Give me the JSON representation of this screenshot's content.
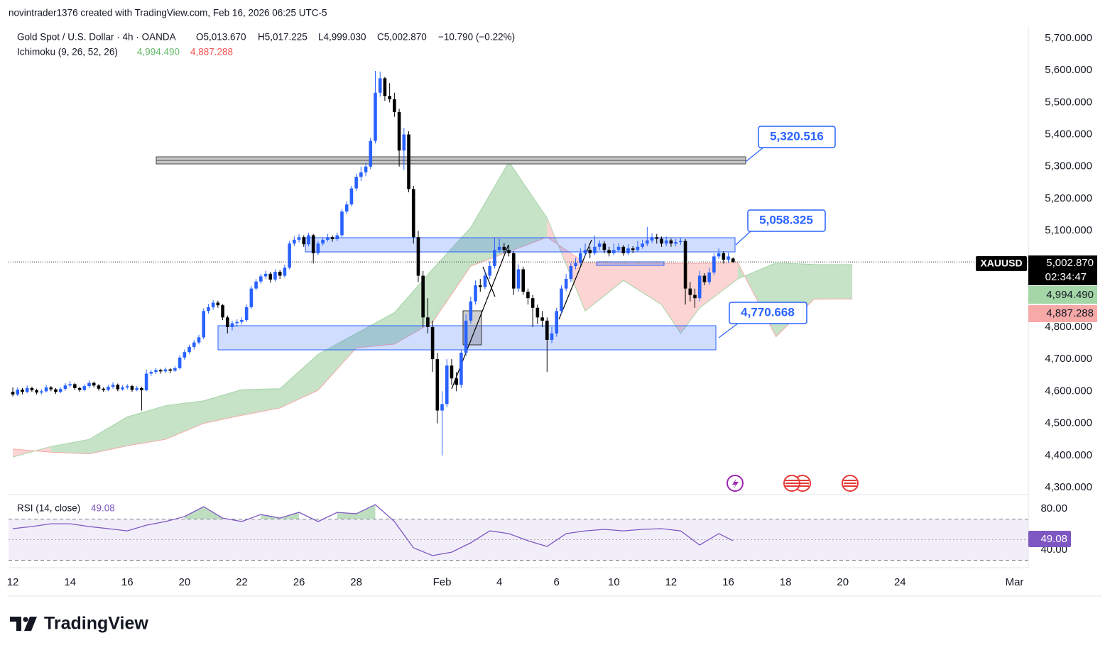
{
  "chart_data": {
    "type": "candlestick",
    "credit": "novintrader1376 created with TradingView.com, Feb 16, 2026 06:25 UTC-5",
    "symbol": "Gold Spot / U.S. Dollar · 4h · OANDA",
    "ohlc_labels": [
      "O5,013.670",
      "H5,017.225",
      "L4,999.030",
      "C5,002.870"
    ],
    "change": "−10.790 (−0.22%)",
    "up_color": "#2962ff",
    "down_color": "#000000",
    "grid": false,
    "xlim": [
      -0.9,
      212.9
    ],
    "ylim": [
      4278,
      5735
    ],
    "xticks": [
      {
        "value": 0,
        "label": "12"
      },
      {
        "value": 12,
        "label": "14"
      },
      {
        "value": 24,
        "label": "16"
      },
      {
        "value": 36,
        "label": "20"
      },
      {
        "value": 48,
        "label": "22"
      },
      {
        "value": 60,
        "label": "26"
      },
      {
        "value": 72,
        "label": "28"
      },
      {
        "value": 90,
        "label": "Feb"
      },
      {
        "value": 102,
        "label": "4"
      },
      {
        "value": 114,
        "label": "6"
      },
      {
        "value": 126,
        "label": "10"
      },
      {
        "value": 138,
        "label": "12"
      },
      {
        "value": 150,
        "label": "16"
      },
      {
        "value": 162,
        "label": "18"
      },
      {
        "value": 174,
        "label": "20"
      },
      {
        "value": 186,
        "label": "24"
      },
      {
        "value": 210,
        "label": "Mar"
      }
    ],
    "yticks": [
      {
        "value": 4300,
        "label": "4,300.000"
      },
      {
        "value": 4400,
        "label": "4,400.000"
      },
      {
        "value": 4500,
        "label": "4,500.000"
      },
      {
        "value": 4600,
        "label": "4,600.000"
      },
      {
        "value": 4700,
        "label": "4,700.000"
      },
      {
        "value": 4800,
        "label": "4,800.000"
      },
      {
        "value": 4900,
        "label": "4,900.000"
      },
      {
        "value": 5000,
        "label": "5,000.000"
      },
      {
        "value": 5100,
        "label": "5,100.000"
      },
      {
        "value": 5200,
        "label": "5,200.000"
      },
      {
        "value": 5300,
        "label": "5,300.000"
      },
      {
        "value": 5400,
        "label": "5,400.000"
      },
      {
        "value": 5500,
        "label": "5,500.000"
      },
      {
        "value": 5600,
        "label": "5,600.000"
      },
      {
        "value": 5700,
        "label": "5,700.000"
      }
    ],
    "symbol_tag": "XAUUSD",
    "last_label": "5,002.870",
    "countdown": "02:34:47",
    "ohlc": [
      [
        4598,
        4612,
        4584,
        4590
      ],
      [
        4590,
        4612,
        4585,
        4605
      ],
      [
        4605,
        4610,
        4590,
        4598
      ],
      [
        4598,
        4618,
        4594,
        4610
      ],
      [
        4610,
        4614,
        4598,
        4603
      ],
      [
        4603,
        4608,
        4590,
        4596
      ],
      [
        4596,
        4606,
        4590,
        4600
      ],
      [
        4600,
        4620,
        4596,
        4612
      ],
      [
        4612,
        4616,
        4600,
        4606
      ],
      [
        4606,
        4610,
        4592,
        4598
      ],
      [
        4598,
        4612,
        4594,
        4607
      ],
      [
        4607,
        4625,
        4602,
        4618
      ],
      [
        4618,
        4632,
        4612,
        4622
      ],
      [
        4622,
        4626,
        4604,
        4610
      ],
      [
        4610,
        4614,
        4598,
        4604
      ],
      [
        4604,
        4622,
        4600,
        4616
      ],
      [
        4616,
        4634,
        4610,
        4626
      ],
      [
        4626,
        4630,
        4612,
        4618
      ],
      [
        4618,
        4622,
        4602,
        4608
      ],
      [
        4608,
        4612,
        4598,
        4604
      ],
      [
        4604,
        4620,
        4600,
        4614
      ],
      [
        4614,
        4628,
        4608,
        4620
      ],
      [
        4620,
        4624,
        4600,
        4606
      ],
      [
        4606,
        4618,
        4602,
        4612
      ],
      [
        4612,
        4622,
        4606,
        4616
      ],
      [
        4616,
        4620,
        4598,
        4604
      ],
      [
        4604,
        4616,
        4600,
        4610
      ],
      [
        4610,
        4614,
        4540,
        4603
      ],
      [
        4603,
        4668,
        4600,
        4655
      ],
      [
        4655,
        4666,
        4648,
        4660
      ],
      [
        4660,
        4672,
        4654,
        4666
      ],
      [
        4666,
        4670,
        4655,
        4662
      ],
      [
        4662,
        4674,
        4657,
        4668
      ],
      [
        4668,
        4672,
        4656,
        4664
      ],
      [
        4664,
        4678,
        4660,
        4672
      ],
      [
        4672,
        4712,
        4668,
        4705
      ],
      [
        4705,
        4730,
        4698,
        4722
      ],
      [
        4722,
        4745,
        4716,
        4738
      ],
      [
        4738,
        4760,
        4730,
        4752
      ],
      [
        4752,
        4776,
        4746,
        4768
      ],
      [
        4768,
        4858,
        4762,
        4850
      ],
      [
        4850,
        4872,
        4842,
        4862
      ],
      [
        4862,
        4884,
        4854,
        4876
      ],
      [
        4876,
        4882,
        4860,
        4868
      ],
      [
        4868,
        4872,
        4822,
        4830
      ],
      [
        4830,
        4836,
        4780,
        4800
      ],
      [
        4800,
        4820,
        4790,
        4812
      ],
      [
        4812,
        4824,
        4800,
        4816
      ],
      [
        4816,
        4830,
        4808,
        4822
      ],
      [
        4822,
        4870,
        4816,
        4862
      ],
      [
        4862,
        4928,
        4856,
        4920
      ],
      [
        4920,
        4950,
        4914,
        4942
      ],
      [
        4942,
        4966,
        4935,
        4958
      ],
      [
        4958,
        4975,
        4950,
        4966
      ],
      [
        4966,
        4972,
        4938,
        4948
      ],
      [
        4948,
        4980,
        4942,
        4972
      ],
      [
        4972,
        4978,
        4950,
        4960
      ],
      [
        4960,
        4994,
        4954,
        4985
      ],
      [
        4985,
        5068,
        4980,
        5060
      ],
      [
        5060,
        5082,
        5052,
        5072
      ],
      [
        5072,
        5090,
        5064,
        5080
      ],
      [
        5080,
        5086,
        5050,
        5058
      ],
      [
        5058,
        5094,
        5052,
        5086
      ],
      [
        5086,
        5090,
        4998,
        5030
      ],
      [
        5030,
        5068,
        5024,
        5060
      ],
      [
        5060,
        5080,
        5054,
        5072
      ],
      [
        5072,
        5090,
        5066,
        5080
      ],
      [
        5080,
        5086,
        5066,
        5074
      ],
      [
        5074,
        5094,
        5068,
        5086
      ],
      [
        5086,
        5168,
        5080,
        5160
      ],
      [
        5160,
        5192,
        5152,
        5182
      ],
      [
        5182,
        5240,
        5176,
        5232
      ],
      [
        5232,
        5278,
        5224,
        5268
      ],
      [
        5268,
        5300,
        5255,
        5282
      ],
      [
        5282,
        5312,
        5270,
        5300
      ],
      [
        5300,
        5390,
        5292,
        5380
      ],
      [
        5380,
        5598,
        5372,
        5530
      ],
      [
        5530,
        5596,
        5518,
        5575
      ],
      [
        5575,
        5580,
        5505,
        5520
      ],
      [
        5520,
        5560,
        5500,
        5510
      ],
      [
        5510,
        5530,
        5455,
        5470
      ],
      [
        5470,
        5480,
        5300,
        5350
      ],
      [
        5350,
        5420,
        5290,
        5400
      ],
      [
        5400,
        5410,
        5220,
        5230
      ],
      [
        5230,
        5240,
        5060,
        5080
      ],
      [
        5080,
        5100,
        4940,
        4960
      ],
      [
        4960,
        4975,
        4800,
        4830
      ],
      [
        4830,
        4890,
        4780,
        4800
      ],
      [
        4800,
        4820,
        4660,
        4700
      ],
      [
        4700,
        4720,
        4500,
        4540
      ],
      [
        4540,
        4600,
        4400,
        4560
      ],
      [
        4560,
        4700,
        4550,
        4680
      ],
      [
        4680,
        4700,
        4620,
        4640
      ],
      [
        4640,
        4660,
        4600,
        4620
      ],
      [
        4620,
        4730,
        4610,
        4720
      ],
      [
        4720,
        4840,
        4710,
        4820
      ],
      [
        4820,
        4895,
        4810,
        4880
      ],
      [
        4880,
        4945,
        4870,
        4930
      ],
      [
        4930,
        4950,
        4910,
        4925
      ],
      [
        4925,
        4975,
        4918,
        4960
      ],
      [
        4960,
        5005,
        4950,
        4990
      ],
      [
        4990,
        5080,
        4982,
        5040
      ],
      [
        5040,
        5075,
        5030,
        5050
      ],
      [
        5050,
        5062,
        5030,
        5040
      ],
      [
        5040,
        5055,
        5020,
        5030
      ],
      [
        5030,
        5036,
        4900,
        4920
      ],
      [
        4920,
        4995,
        4910,
        4980
      ],
      [
        4980,
        4988,
        4900,
        4910
      ],
      [
        4910,
        4920,
        4870,
        4890
      ],
      [
        4890,
        4900,
        4800,
        4860
      ],
      [
        4860,
        4870,
        4810,
        4830
      ],
      [
        4830,
        4850,
        4800,
        4820
      ],
      [
        4820,
        4830,
        4660,
        4760
      ],
      [
        4760,
        4800,
        4750,
        4780
      ],
      [
        4780,
        4860,
        4770,
        4850
      ],
      [
        4850,
        4930,
        4840,
        4920
      ],
      [
        4920,
        4965,
        4912,
        4950
      ],
      [
        4950,
        5000,
        4940,
        4990
      ],
      [
        4990,
        5015,
        4980,
        5000
      ],
      [
        5000,
        5045,
        4992,
        5030
      ],
      [
        5030,
        5060,
        5020,
        5040
      ],
      [
        5040,
        5050,
        5015,
        5030
      ],
      [
        5030,
        5085,
        5024,
        5050
      ],
      [
        5050,
        5070,
        5040,
        5060
      ],
      [
        5060,
        5068,
        5030,
        5040
      ],
      [
        5040,
        5050,
        5020,
        5030
      ],
      [
        5030,
        5060,
        5024,
        5040
      ],
      [
        5040,
        5062,
        5034,
        5050
      ],
      [
        5050,
        5056,
        5022,
        5030
      ],
      [
        5030,
        5058,
        5024,
        5045
      ],
      [
        5045,
        5052,
        5030,
        5040
      ],
      [
        5040,
        5068,
        5034,
        5050
      ],
      [
        5050,
        5072,
        5044,
        5060
      ],
      [
        5060,
        5112,
        5052,
        5070
      ],
      [
        5070,
        5092,
        5062,
        5080
      ],
      [
        5080,
        5090,
        5060,
        5075
      ],
      [
        5075,
        5082,
        5050,
        5060
      ],
      [
        5060,
        5082,
        5052,
        5070
      ],
      [
        5070,
        5076,
        5050,
        5060
      ],
      [
        5060,
        5074,
        5052,
        5065
      ],
      [
        5065,
        5078,
        5056,
        5068
      ],
      [
        5068,
        5074,
        4870,
        4920
      ],
      [
        4920,
        4940,
        4880,
        4900
      ],
      [
        4900,
        4920,
        4860,
        4890
      ],
      [
        4890,
        4975,
        4880,
        4960
      ],
      [
        4960,
        4968,
        4930,
        4940
      ],
      [
        4940,
        4985,
        4932,
        4970
      ],
      [
        4970,
        5030,
        4962,
        5020
      ],
      [
        5020,
        5045,
        5012,
        5030
      ],
      [
        5030,
        5036,
        4998,
        5010
      ],
      [
        5010,
        5032,
        5000,
        5020
      ],
      [
        5013.67,
        5017.225,
        4999.03,
        5002.87
      ]
    ],
    "cloud": {
      "title": "Ichimoku (9, 26, 52, 26)",
      "x": [
        0,
        8,
        16,
        24,
        32,
        40,
        48,
        56,
        64,
        72,
        80,
        88,
        96,
        104,
        112,
        120,
        128,
        136,
        140,
        144,
        152,
        160,
        168,
        176
      ],
      "span_a": [
        4395,
        4428,
        4450,
        4520,
        4555,
        4570,
        4605,
        4608,
        4715,
        4780,
        4845,
        4980,
        5110,
        5315,
        5140,
        4850,
        4945,
        4870,
        4780,
        4860,
        4950,
        5000,
        4995,
        4994.49
      ],
      "span_b": [
        4420,
        4410,
        4405,
        4430,
        4450,
        4500,
        4525,
        4548,
        4603,
        4735,
        4747,
        4815,
        4990,
        5035,
        5080,
        5000,
        4998,
        4998,
        4998,
        4998,
        5000,
        4770,
        4887,
        4887.288
      ],
      "span_a_label": "4,994.490",
      "span_b_label": "4,887.288",
      "up_color": "#43a047",
      "down_color": "#ef5350"
    },
    "annotations": [
      "5,320.516",
      "5,058.325",
      "4,770.668"
    ],
    "rsi": {
      "title": "RSI (14, close)",
      "value_label": "49.08",
      "color": "#7e57c2",
      "ylim": [
        22.8,
        93.8
      ],
      "yticks": [
        {
          "value": 80,
          "label": "80.00"
        },
        {
          "value": 40,
          "label": "40.00"
        }
      ],
      "band": [
        30,
        70
      ],
      "midline": 50,
      "x": [
        0,
        4,
        8,
        12,
        16,
        20,
        24,
        28,
        32,
        36,
        40,
        44,
        48,
        52,
        56,
        60,
        64,
        68,
        72,
        76,
        80,
        84,
        88,
        92,
        96,
        100,
        104,
        108,
        112,
        116,
        120,
        124,
        128,
        132,
        136,
        140,
        144,
        148,
        151
      ],
      "values": [
        60.7,
        62.8,
        65.5,
        65.5,
        62.8,
        60.7,
        58.6,
        64.1,
        67.6,
        72.4,
        82.1,
        71.0,
        67.6,
        74.5,
        71.0,
        76.6,
        67.6,
        76.6,
        75.2,
        84.1,
        67.6,
        42.1,
        34.5,
        37.9,
        46.9,
        58.6,
        55.9,
        49.0,
        43.4,
        55.9,
        58.6,
        60.0,
        58.6,
        60.0,
        60.7,
        58.6,
        44.8,
        55.9,
        49.08
      ]
    },
    "logo": "TradingView"
  }
}
